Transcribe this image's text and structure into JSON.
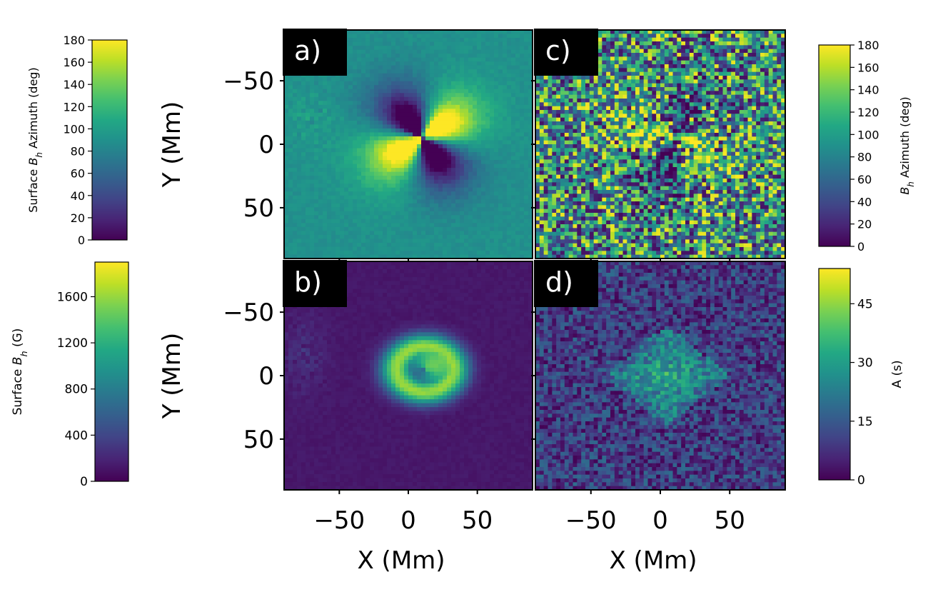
{
  "chart_data": [
    {
      "type": "heatmap",
      "panel_label": "a)",
      "ylabel": "Y (Mm)",
      "xlabel": "",
      "xticks": [],
      "yticks": [
        "50",
        "0",
        "−50"
      ],
      "xlim": [
        -90,
        90
      ],
      "ylim": [
        -90,
        90
      ],
      "colorbar": {
        "label_parts": [
          "Surface ",
          "B",
          "h",
          " Azimuth (deg)"
        ],
        "ticks": [
          "0",
          "20",
          "40",
          "60",
          "80",
          "100",
          "120",
          "140",
          "160",
          "180"
        ],
        "range": [
          0,
          180
        ],
        "side": "left"
      },
      "description_values": {
        "background": 90,
        "positive_lobe": 175,
        "negative_lobe": 15
      }
    },
    {
      "type": "heatmap",
      "panel_label": "b)",
      "ylabel": "Y (Mm)",
      "xlabel": "X (Mm)",
      "xticks": [
        "−50",
        "0",
        "50"
      ],
      "yticks": [
        "50",
        "0",
        "−50"
      ],
      "xlim": [
        -90,
        90
      ],
      "ylim": [
        -90,
        90
      ],
      "colorbar": {
        "label_parts": [
          "Surface ",
          "B",
          "h",
          " (G)"
        ],
        "ticks": [
          "0",
          "400",
          "800",
          "1200",
          "1600"
        ],
        "range": [
          0,
          1900
        ],
        "side": "left"
      },
      "description_values": {
        "background": 100,
        "ring_peak": 1800
      }
    },
    {
      "type": "heatmap",
      "panel_label": "c)",
      "ylabel": "",
      "xlabel": "",
      "xticks": [],
      "yticks": [],
      "xlim": [
        -90,
        90
      ],
      "ylim": [
        -90,
        90
      ],
      "colorbar": {
        "label_parts": [
          "B",
          "h",
          " Azimuth (deg)"
        ],
        "ticks": [
          "0",
          "20",
          "40",
          "60",
          "80",
          "100",
          "120",
          "140",
          "160",
          "180"
        ],
        "range": [
          0,
          180
        ],
        "side": "right"
      }
    },
    {
      "type": "heatmap",
      "panel_label": "d)",
      "ylabel": "",
      "xlabel": "X (Mm)",
      "xticks": [
        "−50",
        "0",
        "50"
      ],
      "yticks": [],
      "xlim": [
        -90,
        90
      ],
      "ylim": [
        -90,
        90
      ],
      "colorbar": {
        "label_parts": [
          "A (s)"
        ],
        "ticks": [
          "0",
          "15",
          "30",
          "45"
        ],
        "range": [
          0,
          54
        ],
        "side": "right"
      }
    }
  ]
}
